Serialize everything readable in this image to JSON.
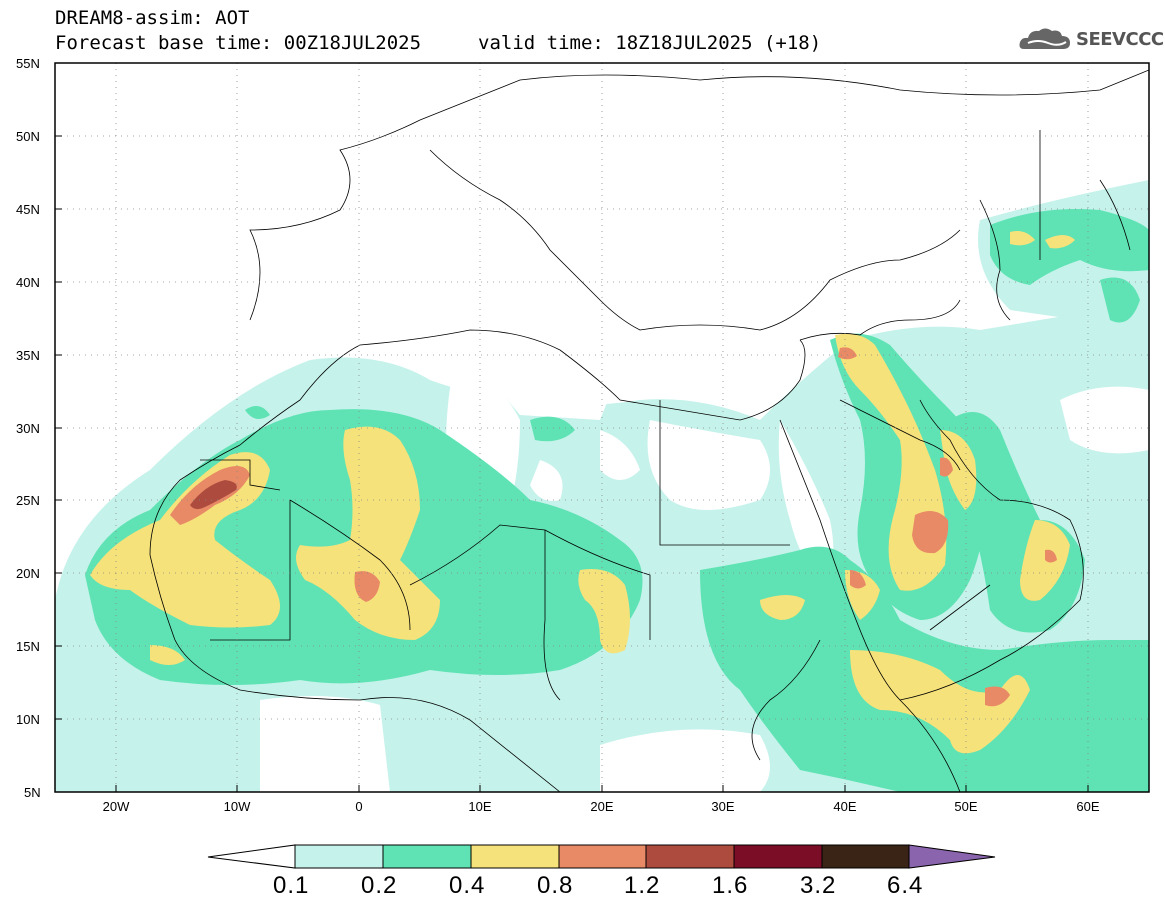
{
  "header": {
    "title": "DREAM8-assim: AOT",
    "base_time": "Forecast base time: 00Z18JUL2025",
    "valid_time": "valid time: 18Z18JUL2025 (+18)"
  },
  "logo": {
    "text": "SEEVCCC",
    "icon": "cloud-icon"
  },
  "map": {
    "lat_labels": [
      "55N",
      "50N",
      "45N",
      "40N",
      "35N",
      "30N",
      "25N",
      "20N",
      "15N",
      "10N",
      "5N"
    ],
    "lon_labels": [
      "20W",
      "10W",
      "0",
      "10E",
      "20E",
      "30E",
      "40E",
      "50E",
      "60E"
    ],
    "extent": {
      "lon": [
        -25,
        65
      ],
      "lat": [
        5,
        55
      ]
    },
    "grid": true,
    "variable": "AOT"
  },
  "colorbar": {
    "levels": [
      "0.1",
      "0.2",
      "0.4",
      "0.8",
      "1.2",
      "1.6",
      "3.2",
      "6.4"
    ],
    "colors": [
      "#c5f2ea",
      "#5fe3b4",
      "#f6e27a",
      "#e88a66",
      "#ad4c3e",
      "#7b0e26",
      "#3a2416",
      "#8a64ac"
    ]
  }
}
